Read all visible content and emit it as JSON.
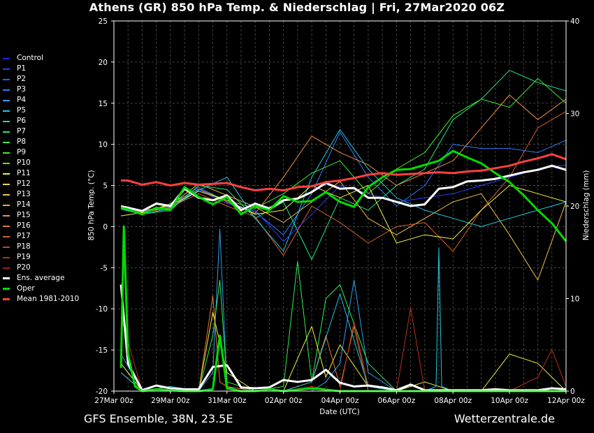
{
  "title": "Athens  (GR)  850 hPa Temp. & Niederschlag | Fri, 27Mar2020 06Z",
  "footer": {
    "left": "GFS Ensemble, 38N, 23.5E",
    "right": "Wetterzentrale.de"
  },
  "legend": [
    {
      "label": "Control",
      "color": "#2222ff"
    },
    {
      "label": "P1",
      "color": "#2a3cff"
    },
    {
      "label": "P2",
      "color": "#2f5cff"
    },
    {
      "label": "P3",
      "color": "#2f7cff"
    },
    {
      "label": "P4",
      "color": "#2fa0f0"
    },
    {
      "label": "P5",
      "color": "#22c8e0"
    },
    {
      "label": "P6",
      "color": "#22dcb0"
    },
    {
      "label": "P7",
      "color": "#22e880"
    },
    {
      "label": "P8",
      "color": "#30f050"
    },
    {
      "label": "P9",
      "color": "#40ee30"
    },
    {
      "label": "P10",
      "color": "#50f020"
    },
    {
      "label": "P11",
      "color": "#f0f040"
    },
    {
      "label": "P12",
      "color": "#f0d840"
    },
    {
      "label": "P13",
      "color": "#f0c040"
    },
    {
      "label": "P14",
      "color": "#f0a840"
    },
    {
      "label": "P15",
      "color": "#f09040"
    },
    {
      "label": "P16",
      "color": "#e87830"
    },
    {
      "label": "P17",
      "color": "#d86028"
    },
    {
      "label": "P18",
      "color": "#c84820"
    },
    {
      "label": "P19",
      "color": "#b83018"
    },
    {
      "label": "P20",
      "color": "#a81818"
    },
    {
      "label": "Ens. average",
      "color": "#ffffff"
    },
    {
      "label": "Oper",
      "color": "#00dd00"
    },
    {
      "label": "Mean 1981-2010",
      "color": "#ff4040"
    }
  ],
  "chart_data": {
    "type": "line",
    "xlabel": "Date (UTC)",
    "ylabel": "850 hPa Temp. (°C)",
    "y2label": "Niederschlag (mm)",
    "x_ticks": [
      "27Mar 00z",
      "29Mar 00z",
      "31Mar 00z",
      "02Apr 00z",
      "04Apr 00z",
      "06Apr 00z",
      "08Apr 00z",
      "10Apr 00z",
      "12Apr 00z"
    ],
    "x_range_days": [
      0,
      16
    ],
    "ylim": [
      -20,
      25
    ],
    "y_ticks": [
      -20,
      -15,
      -10,
      -5,
      0,
      5,
      10,
      15,
      20,
      25
    ],
    "y2lim": [
      0,
      40
    ],
    "y2_ticks": [
      0,
      10,
      20,
      30,
      40
    ],
    "grid": true,
    "temperature_series": [
      {
        "name": "Ens. average",
        "x": [
          0.25,
          0.5,
          1,
          1.5,
          2,
          2.5,
          3,
          3.5,
          4,
          4.5,
          5,
          5.5,
          6,
          6.5,
          7,
          7.5,
          8,
          8.5,
          9,
          9.5,
          10,
          10.5,
          11,
          11.5,
          12,
          12.5,
          13,
          13.5,
          14,
          14.5,
          15,
          15.5,
          16
        ],
        "values": [
          2.4,
          2.3,
          1.9,
          2.8,
          2.5,
          4.6,
          3.5,
          3.2,
          3.8,
          2.0,
          2.8,
          2.2,
          3.2,
          3.4,
          4.2,
          5.3,
          4.6,
          4.7,
          3.5,
          3.5,
          3.0,
          2.5,
          2.7,
          4.6,
          4.8,
          5.5,
          5.6,
          5.8,
          6.2,
          6.6,
          6.9,
          7.4,
          6.9
        ]
      },
      {
        "name": "Oper",
        "x": [
          0.25,
          0.5,
          1,
          1.5,
          2,
          2.5,
          3,
          3.5,
          4,
          4.5,
          5,
          5.5,
          6,
          6.5,
          7,
          7.5,
          8,
          8.5,
          9,
          9.5,
          10,
          10.5,
          11,
          11.5,
          12,
          12.5,
          13,
          13.5,
          14,
          14.5,
          15,
          15.5,
          16
        ],
        "values": [
          2.3,
          2.1,
          1.5,
          2.3,
          2.0,
          4.8,
          3.6,
          2.7,
          3.6,
          1.5,
          2.5,
          2.0,
          3.7,
          3.0,
          3.1,
          4.2,
          3.0,
          2.4,
          4.8,
          6.0,
          6.9,
          7.0,
          7.5,
          8.0,
          9.2,
          8.4,
          7.7,
          6.5,
          5.4,
          3.8,
          2.0,
          0.4,
          -1.8
        ]
      },
      {
        "name": "Mean 1981-2010",
        "x": [
          0.25,
          0.5,
          1,
          1.5,
          2,
          2.5,
          3,
          3.5,
          4,
          4.5,
          5,
          5.5,
          6,
          6.5,
          7,
          7.5,
          8,
          8.5,
          9,
          9.5,
          10,
          10.5,
          11,
          11.5,
          12,
          12.5,
          13,
          13.5,
          14,
          14.5,
          15,
          15.5,
          16
        ],
        "values": [
          5.6,
          5.6,
          5.1,
          5.4,
          5.0,
          5.3,
          5.1,
          5.2,
          5.3,
          4.8,
          4.4,
          4.6,
          4.4,
          4.8,
          4.9,
          5.4,
          5.6,
          5.9,
          6.3,
          6.5,
          6.3,
          6.4,
          6.5,
          6.6,
          6.5,
          6.7,
          6.8,
          7.1,
          7.4,
          7.9,
          8.3,
          8.8,
          8.2
        ]
      },
      {
        "name": "P3",
        "x": [
          0.25,
          1,
          2,
          3,
          4,
          5,
          6,
          7,
          8,
          9,
          10,
          11,
          12,
          13,
          14,
          15,
          16
        ],
        "values": [
          2.5,
          1.8,
          2.5,
          4.8,
          3.0,
          1.8,
          -1.0,
          4.0,
          11.5,
          6.0,
          2.5,
          5.0,
          10.0,
          9.5,
          9.5,
          9.0,
          10.5
        ]
      },
      {
        "name": "P7",
        "x": [
          0.25,
          1,
          2,
          3,
          4,
          5,
          6,
          7,
          8,
          9,
          10,
          11,
          12,
          13,
          14,
          15,
          16
        ],
        "values": [
          2.2,
          1.5,
          2.0,
          5.0,
          4.5,
          1.0,
          3.0,
          -4.0,
          3.5,
          2.0,
          5.0,
          7.0,
          13.0,
          15.5,
          19.0,
          17.5,
          16.5
        ]
      },
      {
        "name": "P9",
        "x": [
          0.25,
          1,
          2,
          3,
          4,
          5,
          6,
          7,
          8,
          9,
          10,
          11,
          12,
          13,
          14,
          15,
          16
        ],
        "values": [
          2.4,
          1.6,
          2.8,
          4.5,
          3.2,
          2.2,
          4.0,
          6.5,
          8.0,
          4.0,
          7.0,
          9.0,
          13.5,
          15.5,
          14.5,
          18.0,
          15.0
        ]
      },
      {
        "name": "P13",
        "x": [
          0.25,
          1,
          2,
          3,
          4,
          5,
          6,
          7,
          8,
          9,
          10,
          11,
          12,
          13,
          14,
          15,
          16
        ],
        "values": [
          2.6,
          1.9,
          2.6,
          5.2,
          3.8,
          2.4,
          0.5,
          3.0,
          5.5,
          1.0,
          -1.0,
          1.0,
          3.0,
          4.0,
          -1.0,
          -6.5,
          3.0
        ]
      },
      {
        "name": "P15",
        "x": [
          0.25,
          1,
          2,
          3,
          4,
          5,
          6,
          7,
          8,
          9,
          10,
          11,
          12,
          13,
          14,
          15,
          16
        ],
        "values": [
          2.3,
          1.7,
          2.3,
          4.6,
          3.0,
          1.6,
          6.0,
          11.0,
          9.0,
          7.5,
          5.0,
          6.5,
          8.0,
          12.0,
          16.0,
          13.0,
          15.5
        ]
      },
      {
        "name": "P17",
        "x": [
          0.25,
          1,
          2,
          3,
          4,
          5,
          6,
          7,
          8,
          9,
          10,
          11,
          12,
          13,
          14,
          15,
          16
        ],
        "values": [
          2.5,
          1.8,
          2.4,
          4.0,
          2.5,
          1.2,
          -3.5,
          2.5,
          0.5,
          -2.0,
          0.0,
          0.5,
          -3.0,
          2.0,
          6.0,
          12.0,
          14.0
        ]
      },
      {
        "name": "P5",
        "x": [
          0.25,
          1,
          2,
          3,
          4,
          5,
          6,
          7,
          8,
          9,
          10,
          11,
          12,
          13,
          14,
          15,
          16
        ],
        "values": [
          2.1,
          1.5,
          2.2,
          4.4,
          6.0,
          1.0,
          -3.0,
          6.0,
          11.8,
          7.0,
          3.5,
          2.0,
          1.0,
          0.0,
          1.0,
          2.0,
          3.0
        ]
      },
      {
        "name": "P1",
        "x": [
          0.25,
          1,
          2,
          3,
          4,
          5,
          6,
          7,
          8,
          9,
          10,
          11,
          12,
          13,
          14,
          15,
          16
        ],
        "values": [
          2.4,
          1.8,
          2.5,
          4.5,
          2.8,
          2.0,
          -1.8,
          1.5,
          5.0,
          4.0,
          3.0,
          3.5,
          4.0,
          5.0,
          6.0,
          7.0,
          7.5
        ]
      },
      {
        "name": "P11",
        "x": [
          0.25,
          1,
          2,
          3,
          4,
          5,
          6,
          7,
          8,
          9,
          10,
          11,
          12,
          13,
          14,
          15,
          16
        ],
        "values": [
          1.3,
          1.7,
          2.6,
          4.3,
          3.2,
          1.5,
          2.0,
          5.0,
          3.5,
          5.0,
          -2.0,
          -1.0,
          -1.5,
          2.0,
          5.0,
          4.0,
          3.0
        ]
      }
    ],
    "precipitation_series": [
      {
        "name": "Ens. average",
        "x": [
          0.25,
          0.5,
          1,
          1.5,
          2,
          2.5,
          3,
          3.5,
          4,
          4.5,
          5,
          5.5,
          6,
          6.5,
          7,
          7.5,
          8,
          8.5,
          9,
          9.5,
          10,
          10.5,
          11,
          11.5,
          12,
          12.5,
          13,
          13.5,
          14,
          14.5,
          15,
          15.5,
          16
        ],
        "values": [
          11.5,
          3.0,
          0.1,
          0.6,
          0.3,
          0.2,
          0.2,
          2.6,
          2.8,
          0.4,
          0.3,
          0.4,
          1.2,
          1.0,
          1.2,
          2.3,
          0.9,
          0.5,
          0.6,
          0.4,
          0.1,
          0.7,
          0.1,
          0.1,
          0.1,
          0.1,
          0.1,
          0.2,
          0.1,
          0.1,
          0.1,
          0.3,
          0.2
        ]
      },
      {
        "name": "Oper",
        "x": [
          0.25,
          0.35,
          0.5,
          0.75,
          1,
          1.5,
          2,
          2.5,
          3,
          3.5,
          3.75,
          4,
          4.5,
          5,
          5.5,
          6,
          7,
          8,
          9,
          10,
          11,
          12,
          13,
          14,
          15,
          16
        ],
        "values": [
          2.5,
          17.8,
          4.0,
          0.5,
          0.0,
          0.2,
          0.1,
          0.0,
          0.0,
          0.2,
          6.0,
          0.3,
          0.0,
          0.0,
          0.2,
          0.0,
          0.3,
          0.0,
          0.0,
          0.0,
          0.0,
          0.0,
          0.0,
          0.0,
          0.0,
          0.0
        ]
      },
      {
        "name": "P4",
        "x": [
          0.25,
          1,
          2,
          3,
          3.5,
          3.75,
          4,
          4.5,
          5,
          6,
          7,
          7.5,
          8,
          8.5,
          9,
          10,
          11,
          12,
          13,
          14,
          15,
          16
        ],
        "values": [
          4.0,
          0.0,
          0.0,
          0.0,
          2.0,
          17.5,
          0.5,
          0.0,
          0.0,
          0.0,
          0.0,
          1.0,
          3.0,
          12.0,
          2.0,
          0.0,
          0.0,
          0.0,
          0.0,
          0.0,
          0.0,
          0.0
        ]
      },
      {
        "name": "P8",
        "x": [
          0.25,
          1,
          2,
          3,
          3.5,
          3.75,
          4,
          5,
          6,
          6.5,
          7,
          7.5,
          8,
          9,
          10,
          11,
          12,
          13,
          14,
          15,
          16
        ],
        "values": [
          3.0,
          0.0,
          0.0,
          0.0,
          6.0,
          12.0,
          1.0,
          0.0,
          0.5,
          14.0,
          1.0,
          10.0,
          11.5,
          3.0,
          0.0,
          0.0,
          0.0,
          0.0,
          0.0,
          0.0,
          0.0
        ]
      },
      {
        "name": "P11",
        "x": [
          0.25,
          1,
          2,
          3,
          3.5,
          4,
          5,
          6,
          7,
          7.5,
          8,
          9,
          10,
          11,
          12,
          13,
          14,
          15,
          16
        ],
        "values": [
          3.0,
          0.0,
          0.0,
          0.0,
          8.5,
          2.0,
          0.0,
          0.0,
          7.0,
          1.5,
          5.0,
          0.5,
          0.0,
          1.0,
          0.0,
          0.0,
          4.0,
          3.0,
          0.0
        ]
      },
      {
        "name": "P16",
        "x": [
          0.25,
          1,
          2,
          3,
          3.5,
          3.75,
          4,
          5,
          6,
          7,
          7.5,
          8,
          8.5,
          9,
          10,
          11,
          12,
          13,
          14,
          15,
          16
        ],
        "values": [
          2.0,
          0.0,
          0.0,
          0.0,
          10.3,
          1.0,
          0.5,
          0.0,
          0.0,
          1.0,
          6.0,
          0.5,
          7.0,
          0.0,
          0.0,
          0.0,
          0.0,
          0.0,
          0.0,
          0.0,
          0.0
        ]
      },
      {
        "name": "P19",
        "x": [
          0.25,
          1,
          2,
          3,
          4,
          5,
          6,
          7,
          8,
          8.5,
          9,
          10,
          10.5,
          11,
          12,
          13,
          14,
          15,
          15.5,
          16
        ],
        "values": [
          8.0,
          0.0,
          0.0,
          0.0,
          0.0,
          0.0,
          0.0,
          0.5,
          0.0,
          7.5,
          0.5,
          0.0,
          9.0,
          0.0,
          0.0,
          0.0,
          0.0,
          1.5,
          4.5,
          0.5
        ]
      },
      {
        "name": "P5",
        "x": [
          0.25,
          1,
          2,
          3,
          4,
          5,
          6,
          7,
          8,
          9,
          10,
          11,
          11.4,
          11.5,
          11.6,
          12,
          13,
          14,
          15,
          16
        ],
        "values": [
          2.0,
          0.0,
          0.5,
          0.0,
          0.0,
          0.0,
          0.0,
          1.0,
          10.5,
          0.5,
          0.0,
          0.0,
          0.5,
          15.5,
          0.5,
          0.0,
          0.0,
          0.0,
          0.0,
          0.0
        ]
      }
    ]
  }
}
